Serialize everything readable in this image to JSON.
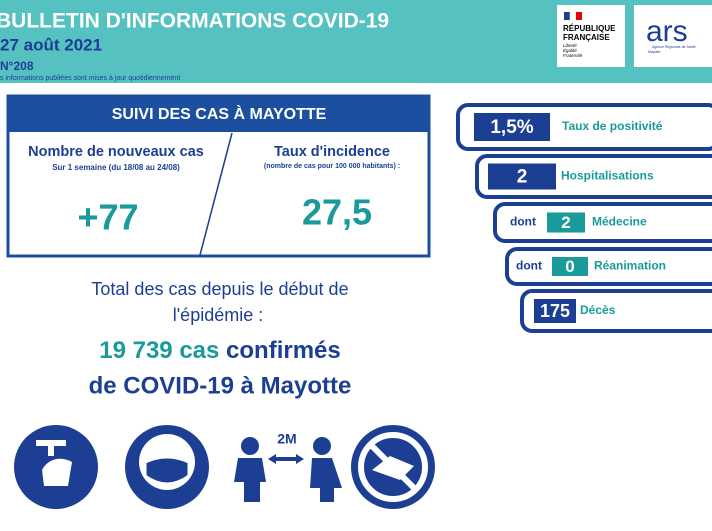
{
  "header": {
    "title": "BULLETIN D'INFORMATIONS COVID-19",
    "date": "27 août 2021",
    "number": "N°208",
    "note": "s informations publiées sont mises à jour quotidiennement",
    "logo_rf": [
      "RÉPUBLIQUE",
      "FRANÇAISE"
    ],
    "logo_rf_motto": [
      "Liberté",
      "Égalité",
      "Fraternité"
    ],
    "logo_ars": "ars",
    "logo_ars_sub": [
      "Agence Régionale de Santé",
      "Mayotte"
    ]
  },
  "summary": {
    "title": "SUIVI DES CAS À MAYOTTE",
    "new_cases": {
      "label": "Nombre de nouveaux cas",
      "sub": "Sur 1 semaine (du 18/08 au 24/08)",
      "value": "+77"
    },
    "incidence": {
      "label": "Taux d'incidence",
      "sub": "(nombre de cas pour 100 000 habitants) :",
      "value": "27,5"
    }
  },
  "indicators": [
    {
      "value": "1,5%",
      "label": "Taux de positivité"
    },
    {
      "value": "2",
      "label": "Hospitalisations"
    },
    {
      "prefix": "dont",
      "value": "2",
      "label": "Médecine"
    },
    {
      "prefix": "dont",
      "value": "0",
      "label": "Réanimation"
    },
    {
      "value": "175",
      "label": "Décès"
    }
  ],
  "total": {
    "intro": [
      "Total des cas depuis le début de",
      "l'épidémie :"
    ],
    "count": "19 739 cas",
    "count_rest": "confirmés",
    "line2": "de COVID-19 à Mayotte"
  },
  "icons": {
    "distance_label": "2M"
  }
}
